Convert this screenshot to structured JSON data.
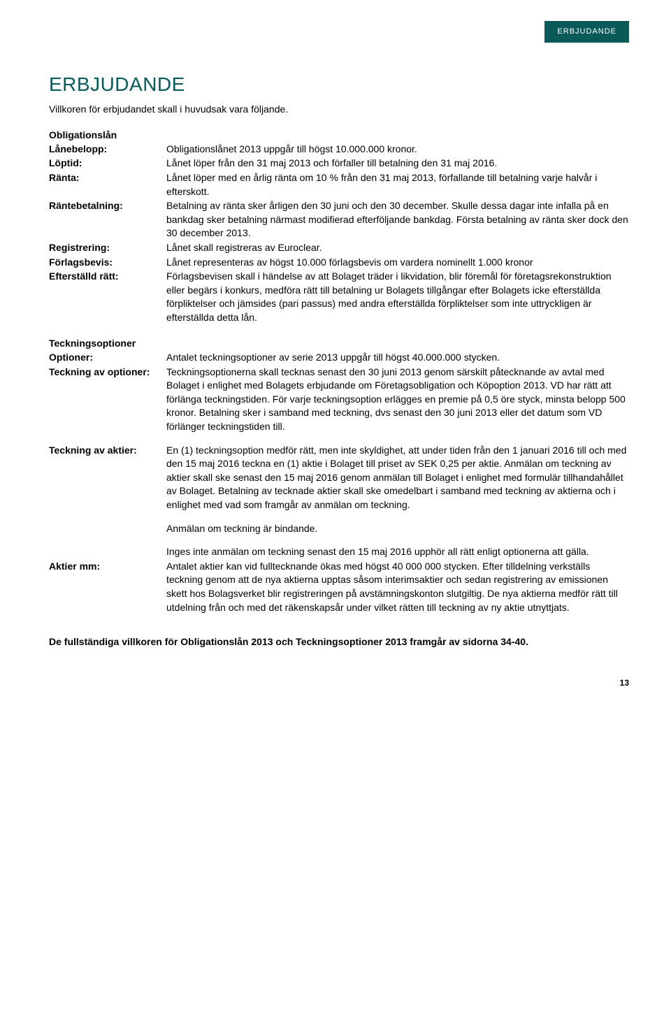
{
  "tab_label": "ERBJUDANDE",
  "heading": "ERBJUDANDE",
  "intro": "Villkoren för erbjudandet skall i huvudsak vara följande.",
  "section1_title": "Obligationslån",
  "obligation": {
    "lanebelopp_label": "Lånebelopp:",
    "lanebelopp": "Obligationslånet 2013 uppgår till högst 10.000.000 kronor.",
    "loptid_label": "Löptid:",
    "loptid": "Lånet löper från den 31 maj 2013 och förfaller till betalning den 31 maj 2016.",
    "ranta_label": "Ränta:",
    "ranta": "Lånet löper med en årlig ränta om 10 % från den 31 maj 2013, förfallande till betalning varje halvår i efterskott.",
    "rantebet_label": "Räntebetalning:",
    "rantebet": "Betalning av ränta sker årligen den 30 juni och den 30 december. Skulle dessa dagar inte infalla på en bankdag sker betalning närmast modifierad efterföljande bankdag. Första betalning av ränta sker dock den 30 december 2013.",
    "reg_label": "Registrering:",
    "reg": "Lånet skall registreras av Euroclear.",
    "forlag_label": "Förlagsbevis:",
    "forlag": "Lånet representeras av högst 10.000 förlagsbevis om vardera nominellt 1.000 kronor",
    "efter_label": "Efterställd rätt:",
    "efter": "Förlagsbevisen skall i händelse av att Bolaget träder i likvidation, blir föremål för företagsrekonstruktion eller begärs i konkurs, medföra rätt till betalning ur Bolagets tillgångar efter Bolagets icke efterställda förpliktelser och jämsides (pari passus) med andra efterställda förpliktelser som inte uttryckligen är efterställda detta lån."
  },
  "section2_title": "Teckningsoptioner",
  "teckning": {
    "optioner_label": "Optioner:",
    "optioner": "Antalet teckningsoptioner av serie 2013 uppgår till högst 40.000.000 stycken.",
    "teck_opt_label": "Teckning av optioner:",
    "teck_opt": "Teckningsoptionerna skall tecknas senast den 30 juni 2013 genom särskilt påtecknande av avtal med Bolaget i enlighet med Bolagets erbjudande om Företagsobligation och Köpoption 2013. VD har rätt att förlänga teckningstiden. För varje teckningsoption erlägges en premie på 0,5 öre styck, minsta belopp 500 kronor. Betalning sker i samband med teckning, dvs senast den 30 juni 2013 eller det datum som VD förlänger teckningstiden till.",
    "teck_akt_label": "Teckning av aktier:",
    "teck_akt": "En (1) teckningsoption medför rätt, men inte skyldighet, att under tiden från den 1 januari 2016 till och med den 15 maj 2016 teckna en (1) aktie i Bolaget till priset av SEK 0,25 per aktie. Anmälan om teckning av aktier skall ske senast den 15 maj 2016 genom anmälan till Bolaget i enlighet med formulär tillhandahållet av Bolaget. Betalning av tecknade aktier skall ske omedelbart i samband med teckning av aktierna och i enlighet med vad som framgår av anmälan om teckning.",
    "bindande": "Anmälan om teckning är bindande.",
    "inges": "Inges inte anmälan om teckning senast den 15 maj 2016 upphör all rätt enligt optionerna att gälla.",
    "aktier_label": "Aktier mm:",
    "aktier": "Antalet aktier kan vid fulltecknande ökas med högst 40 000 000 stycken. Efter tilldelning verkställs teckning genom att de nya aktierna upptas såsom interimsaktier och sedan registrering av emissionen skett hos Bolagsverket blir registreringen på avstämningskonton slutgiltig. De nya aktierna medför rätt till utdelning från och med det räkenskapsår under vilket rätten till teckning av ny aktie utnyttjats."
  },
  "footer": "De fullständiga villkoren för Obligationslån 2013 och Teckningsoptioner 2013 framgår av sidorna 34-40.",
  "page_number": "13"
}
